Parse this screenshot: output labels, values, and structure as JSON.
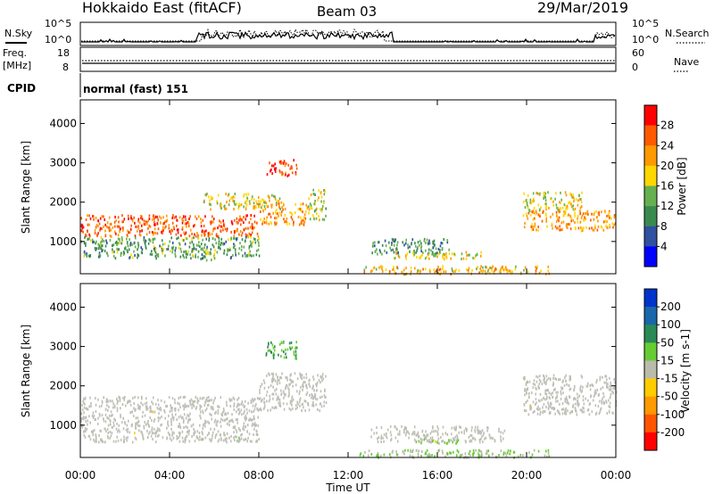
{
  "header": {
    "station": "Hokkaido East (fitACF)",
    "beam": "Beam 03",
    "date": "29/Mar/2019"
  },
  "status_panels": {
    "nsky_label": "N.Sky",
    "nsearch_label": "N.Search",
    "noise_ticks": [
      "10^5",
      "10^0"
    ],
    "freq_label_line1": "Freq.",
    "freq_label_line2": "[MHz]",
    "freq_ticks": [
      "18",
      "8"
    ],
    "nave_label": "Nave",
    "nave_ticks": [
      "60",
      "0"
    ],
    "cpid_label": "CPID",
    "cpid_text": "normal (fast) 151"
  },
  "x_axis": {
    "label": "Time UT",
    "ticks": [
      "00:00",
      "04:00",
      "08:00",
      "12:00",
      "16:00",
      "20:00",
      "00:00"
    ],
    "hours": [
      0,
      4,
      8,
      12,
      16,
      20,
      24
    ]
  },
  "colors": {
    "power_scale": [
      "#0000ff",
      "#3050a0",
      "#3a8a50",
      "#66b050",
      "#ffd700",
      "#ff9900",
      "#ff5a00",
      "#ff0000"
    ],
    "velocity_scale": [
      "#0033cc",
      "#1a66aa",
      "#2a8a55",
      "#66cc33",
      "#bbbbaa",
      "#ffcc00",
      "#ff9900",
      "#ff5500",
      "#ff0000"
    ],
    "ground_scatter": "#c0c0b8"
  },
  "chart_data": [
    {
      "type": "heatmap",
      "title": "Power",
      "ylabel": "Slant Range [km]",
      "xlabel": "",
      "xlim": [
        0,
        24
      ],
      "ylim": [
        180,
        4600
      ],
      "yticks": [
        1000,
        2000,
        3000,
        4000
      ],
      "colorbar": {
        "label": "Power [dB]",
        "ticks": [
          "28",
          "24",
          "20",
          "16",
          "12",
          "8",
          "4"
        ],
        "range": [
          0,
          32
        ]
      },
      "regions": [
        {
          "t": [
            0.0,
            8.0
          ],
          "r": [
            1150,
            1700
          ],
          "level": 26
        },
        {
          "t": [
            8.0,
            10.2
          ],
          "r": [
            1450,
            2000
          ],
          "level": 22
        },
        {
          "t": [
            10.2,
            11.0
          ],
          "r": [
            1550,
            2350
          ],
          "level": 16
        },
        {
          "t": [
            8.3,
            9.7
          ],
          "r": [
            2700,
            3100
          ],
          "level": 28
        },
        {
          "t": [
            5.5,
            9.0
          ],
          "r": [
            1850,
            2250
          ],
          "level": 18
        },
        {
          "t": [
            0.0,
            8.0
          ],
          "r": [
            600,
            1150
          ],
          "level": 12
        },
        {
          "t": [
            5.3,
            6.0
          ],
          "r": [
            550,
            800
          ],
          "level": 16
        },
        {
          "t": [
            13.0,
            16.5
          ],
          "r": [
            700,
            1100
          ],
          "level": 10
        },
        {
          "t": [
            14.0,
            18.0
          ],
          "r": [
            580,
            760
          ],
          "level": 18
        },
        {
          "t": [
            12.5,
            21.0
          ],
          "r": [
            200,
            400
          ],
          "level": 20
        },
        {
          "t": [
            19.8,
            24.0
          ],
          "r": [
            1300,
            1800
          ],
          "level": 22
        },
        {
          "t": [
            19.8,
            22.5
          ],
          "r": [
            1800,
            2300
          ],
          "level": 18
        }
      ]
    },
    {
      "type": "heatmap",
      "title": "Velocity",
      "ylabel": "Slant Range [km]",
      "xlabel": "Time UT",
      "xlim": [
        0,
        24
      ],
      "ylim": [
        180,
        4600
      ],
      "yticks": [
        1000,
        2000,
        3000,
        4000
      ],
      "colorbar": {
        "label": "Velocity [m s-1]",
        "ticks": [
          "200",
          "100",
          "50",
          "15",
          "-15",
          "-50",
          "-100",
          "-200"
        ],
        "range": [
          -250,
          250
        ]
      },
      "regions": [
        {
          "t": [
            0.0,
            8.0
          ],
          "r": [
            1150,
            1750
          ],
          "level": 0,
          "ground_scatter": true
        },
        {
          "t": [
            8.0,
            11.0
          ],
          "r": [
            1400,
            2350
          ],
          "level": 0,
          "ground_scatter": true
        },
        {
          "t": [
            8.3,
            9.7
          ],
          "r": [
            2700,
            3150
          ],
          "level": 80
        },
        {
          "t": [
            0.0,
            8.0
          ],
          "r": [
            600,
            1150
          ],
          "level": 0,
          "ground_scatter": true
        },
        {
          "t": [
            13.0,
            19.0
          ],
          "r": [
            600,
            1000
          ],
          "level": 0,
          "ground_scatter": true
        },
        {
          "t": [
            15.0,
            17.0
          ],
          "r": [
            560,
            680
          ],
          "level": 40
        },
        {
          "t": [
            12.5,
            21.0
          ],
          "r": [
            200,
            400
          ],
          "level": 30
        },
        {
          "t": [
            19.8,
            24.0
          ],
          "r": [
            1300,
            2300
          ],
          "level": 0,
          "ground_scatter": true
        }
      ]
    }
  ]
}
